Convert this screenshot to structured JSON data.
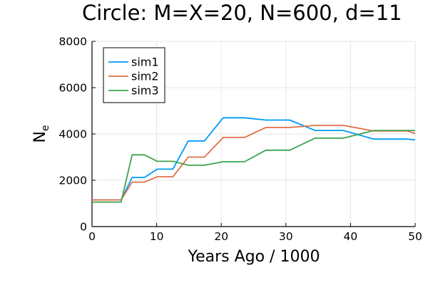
{
  "chart_data": {
    "type": "line",
    "title": "Circle: M=X=20, N=600, d=11",
    "xlabel": "Years Ago / 1000",
    "ylabel_main": "N",
    "ylabel_sub": "e",
    "xlim": [
      0,
      50
    ],
    "ylim": [
      0,
      8000
    ],
    "xticks": [
      0,
      10,
      20,
      30,
      40,
      50
    ],
    "yticks": [
      0,
      2000,
      4000,
      6000,
      8000
    ],
    "grid": true,
    "legend_position": "top-left",
    "series": [
      {
        "name": "sim1",
        "color": "#009AFA",
        "x": [
          0,
          4.5,
          6.2,
          8.1,
          10.1,
          12.5,
          14.9,
          17.4,
          20.3,
          23.6,
          26.9,
          30.6,
          34.5,
          38.9,
          43.6,
          48.8,
          50
        ],
        "y": [
          1150,
          1150,
          2120,
          2120,
          2480,
          2480,
          3700,
          3700,
          4700,
          4700,
          4600,
          4600,
          4150,
          4150,
          3780,
          3780,
          3740
        ]
      },
      {
        "name": "sim2",
        "color": "#E36F47",
        "x": [
          0,
          4.5,
          6.2,
          8.1,
          10.1,
          12.5,
          14.9,
          17.4,
          20.3,
          23.6,
          26.9,
          30.6,
          34.5,
          38.9,
          43.6,
          48.8,
          50
        ],
        "y": [
          1150,
          1150,
          1920,
          1920,
          2150,
          2150,
          3000,
          3000,
          3850,
          3850,
          4280,
          4280,
          4370,
          4370,
          4130,
          4130,
          4020
        ]
      },
      {
        "name": "sim3",
        "color": "#3DA44D",
        "x": [
          0,
          4.5,
          6.2,
          8.1,
          10.1,
          12.5,
          14.9,
          17.4,
          20.3,
          23.6,
          26.9,
          30.6,
          34.5,
          38.9,
          43.6,
          48.8,
          50
        ],
        "y": [
          1060,
          1060,
          3100,
          3100,
          2820,
          2820,
          2650,
          2650,
          2800,
          2800,
          3300,
          3300,
          3820,
          3820,
          4150,
          4150,
          4150
        ]
      }
    ]
  }
}
